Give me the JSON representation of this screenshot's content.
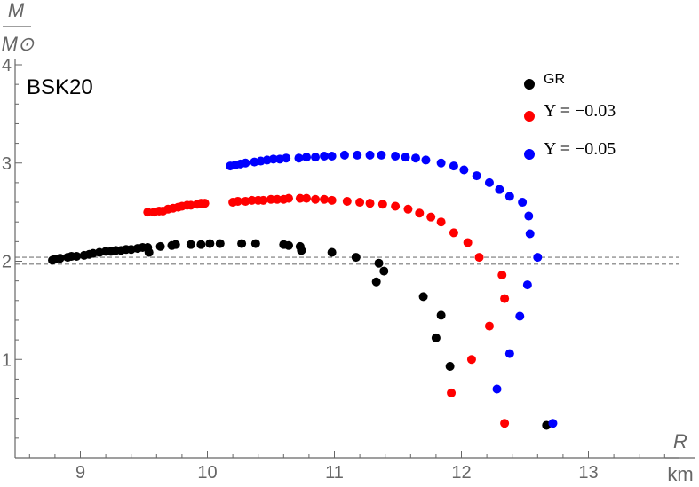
{
  "chart_data": {
    "type": "scatter",
    "title": "BSK20",
    "xlabel": {
      "num": "R",
      "den": "km"
    },
    "ylabel": {
      "num": "M",
      "den": "M⊙"
    },
    "xlim": [
      8.55,
      13.5
    ],
    "ylim": [
      0,
      4
    ],
    "xticks": [
      9,
      10,
      11,
      12,
      13
    ],
    "yticks": [
      1,
      2,
      3,
      4
    ],
    "reference_lines_y": [
      2.04,
      1.97
    ],
    "legend_position": "top-right",
    "series": [
      {
        "name": "GR",
        "label": "GR",
        "label_style": "text",
        "color": "#000000",
        "points": [
          [
            8.78,
            2.01
          ],
          [
            8.8,
            2.02
          ],
          [
            8.84,
            2.03
          ],
          [
            8.9,
            2.04
          ],
          [
            8.93,
            2.05
          ],
          [
            8.97,
            2.05
          ],
          [
            9.03,
            2.06
          ],
          [
            9.07,
            2.07
          ],
          [
            9.1,
            2.08
          ],
          [
            9.15,
            2.09
          ],
          [
            9.2,
            2.1
          ],
          [
            9.24,
            2.1
          ],
          [
            9.28,
            2.11
          ],
          [
            9.32,
            2.11
          ],
          [
            9.36,
            2.12
          ],
          [
            9.4,
            2.12
          ],
          [
            9.45,
            2.13
          ],
          [
            9.49,
            2.14
          ],
          [
            9.53,
            2.14
          ],
          [
            9.54,
            2.09
          ],
          [
            9.63,
            2.15
          ],
          [
            9.72,
            2.16
          ],
          [
            9.75,
            2.17
          ],
          [
            9.87,
            2.17
          ],
          [
            9.95,
            2.17
          ],
          [
            10.02,
            2.18
          ],
          [
            10.1,
            2.18
          ],
          [
            10.27,
            2.18
          ],
          [
            10.38,
            2.18
          ],
          [
            10.6,
            2.17
          ],
          [
            10.64,
            2.16
          ],
          [
            10.73,
            2.15
          ],
          [
            10.74,
            2.11
          ],
          [
            10.98,
            2.09
          ],
          [
            11.17,
            2.04
          ],
          [
            11.35,
            1.98
          ],
          [
            11.39,
            1.9
          ],
          [
            11.33,
            1.79
          ],
          [
            11.7,
            1.64
          ],
          [
            11.84,
            1.45
          ],
          [
            11.8,
            1.22
          ],
          [
            11.91,
            0.93
          ],
          [
            12.67,
            0.33
          ]
        ]
      },
      {
        "name": "Υ = −0.03",
        "label": "Υ = −0.03",
        "label_style": "math",
        "color": "#ff0000",
        "points": [
          [
            9.53,
            2.5
          ],
          [
            9.58,
            2.5
          ],
          [
            9.62,
            2.51
          ],
          [
            9.65,
            2.51
          ],
          [
            9.69,
            2.53
          ],
          [
            9.73,
            2.54
          ],
          [
            9.77,
            2.55
          ],
          [
            9.8,
            2.56
          ],
          [
            9.84,
            2.57
          ],
          [
            9.87,
            2.57
          ],
          [
            9.92,
            2.58
          ],
          [
            9.95,
            2.59
          ],
          [
            9.98,
            2.59
          ],
          [
            10.2,
            2.6
          ],
          [
            10.24,
            2.61
          ],
          [
            10.3,
            2.61
          ],
          [
            10.35,
            2.62
          ],
          [
            10.4,
            2.62
          ],
          [
            10.44,
            2.62
          ],
          [
            10.5,
            2.63
          ],
          [
            10.55,
            2.63
          ],
          [
            10.6,
            2.63
          ],
          [
            10.64,
            2.64
          ],
          [
            10.73,
            2.64
          ],
          [
            10.78,
            2.64
          ],
          [
            10.85,
            2.63
          ],
          [
            10.92,
            2.63
          ],
          [
            10.98,
            2.62
          ],
          [
            11.1,
            2.61
          ],
          [
            11.2,
            2.6
          ],
          [
            11.28,
            2.59
          ],
          [
            11.38,
            2.58
          ],
          [
            11.48,
            2.56
          ],
          [
            11.58,
            2.53
          ],
          [
            11.67,
            2.49
          ],
          [
            11.76,
            2.45
          ],
          [
            11.84,
            2.4
          ],
          [
            11.94,
            2.29
          ],
          [
            12.05,
            2.19
          ],
          [
            12.14,
            2.04
          ],
          [
            12.32,
            1.86
          ],
          [
            12.34,
            1.62
          ],
          [
            12.22,
            1.34
          ],
          [
            12.08,
            1.0
          ],
          [
            11.92,
            0.66
          ],
          [
            12.34,
            0.35
          ]
        ]
      },
      {
        "name": "Υ = −0.05",
        "label": "Υ = −0.05",
        "label_style": "math",
        "color": "#0000ff",
        "points": [
          [
            10.18,
            2.97
          ],
          [
            10.22,
            2.98
          ],
          [
            10.26,
            2.99
          ],
          [
            10.3,
            3.0
          ],
          [
            10.37,
            3.01
          ],
          [
            10.42,
            3.02
          ],
          [
            10.47,
            3.03
          ],
          [
            10.52,
            3.04
          ],
          [
            10.57,
            3.04
          ],
          [
            10.62,
            3.05
          ],
          [
            10.72,
            3.05
          ],
          [
            10.78,
            3.06
          ],
          [
            10.85,
            3.06
          ],
          [
            10.92,
            3.07
          ],
          [
            10.98,
            3.07
          ],
          [
            11.08,
            3.08
          ],
          [
            11.18,
            3.08
          ],
          [
            11.28,
            3.08
          ],
          [
            11.37,
            3.08
          ],
          [
            11.48,
            3.07
          ],
          [
            11.56,
            3.06
          ],
          [
            11.64,
            3.05
          ],
          [
            11.72,
            3.03
          ],
          [
            11.84,
            3.0
          ],
          [
            11.94,
            2.97
          ],
          [
            12.02,
            2.93
          ],
          [
            12.12,
            2.87
          ],
          [
            12.22,
            2.8
          ],
          [
            12.3,
            2.73
          ],
          [
            12.38,
            2.66
          ],
          [
            12.48,
            2.6
          ],
          [
            12.53,
            2.46
          ],
          [
            12.54,
            2.28
          ],
          [
            12.6,
            2.04
          ],
          [
            12.52,
            1.76
          ],
          [
            12.46,
            1.44
          ],
          [
            12.38,
            1.06
          ],
          [
            12.28,
            0.7
          ],
          [
            12.72,
            0.35
          ]
        ]
      }
    ]
  }
}
